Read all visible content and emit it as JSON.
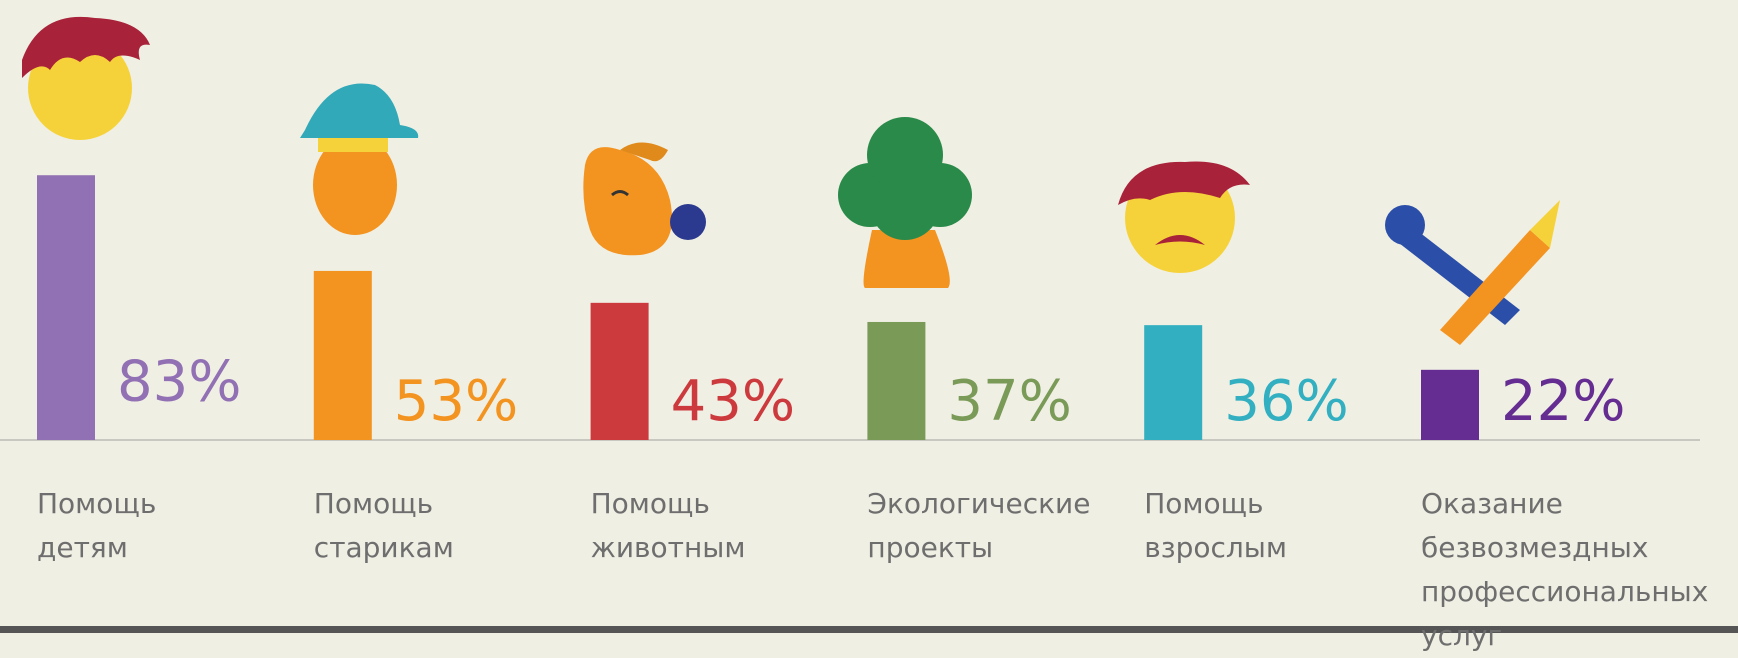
{
  "chart_data": {
    "type": "bar",
    "categories": [
      "Помощь\nдетям",
      "Помощь\nстарикам",
      "Помощь\nживотным",
      "Экологические\nпроекты",
      "Помощь\nвзрослым",
      "Оказание\nбезвозмездных\nпрофессиональных\nуслуг"
    ],
    "values": [
      83,
      53,
      43,
      37,
      36,
      22
    ],
    "value_labels": [
      "83%",
      "53%",
      "43%",
      "37%",
      "36%",
      "22%"
    ],
    "colors": [
      "#9170b3",
      "#f39320",
      "#cc3a3d",
      "#7a9a57",
      "#32afc0",
      "#652d91"
    ],
    "ylim": [
      0,
      100
    ]
  }
}
